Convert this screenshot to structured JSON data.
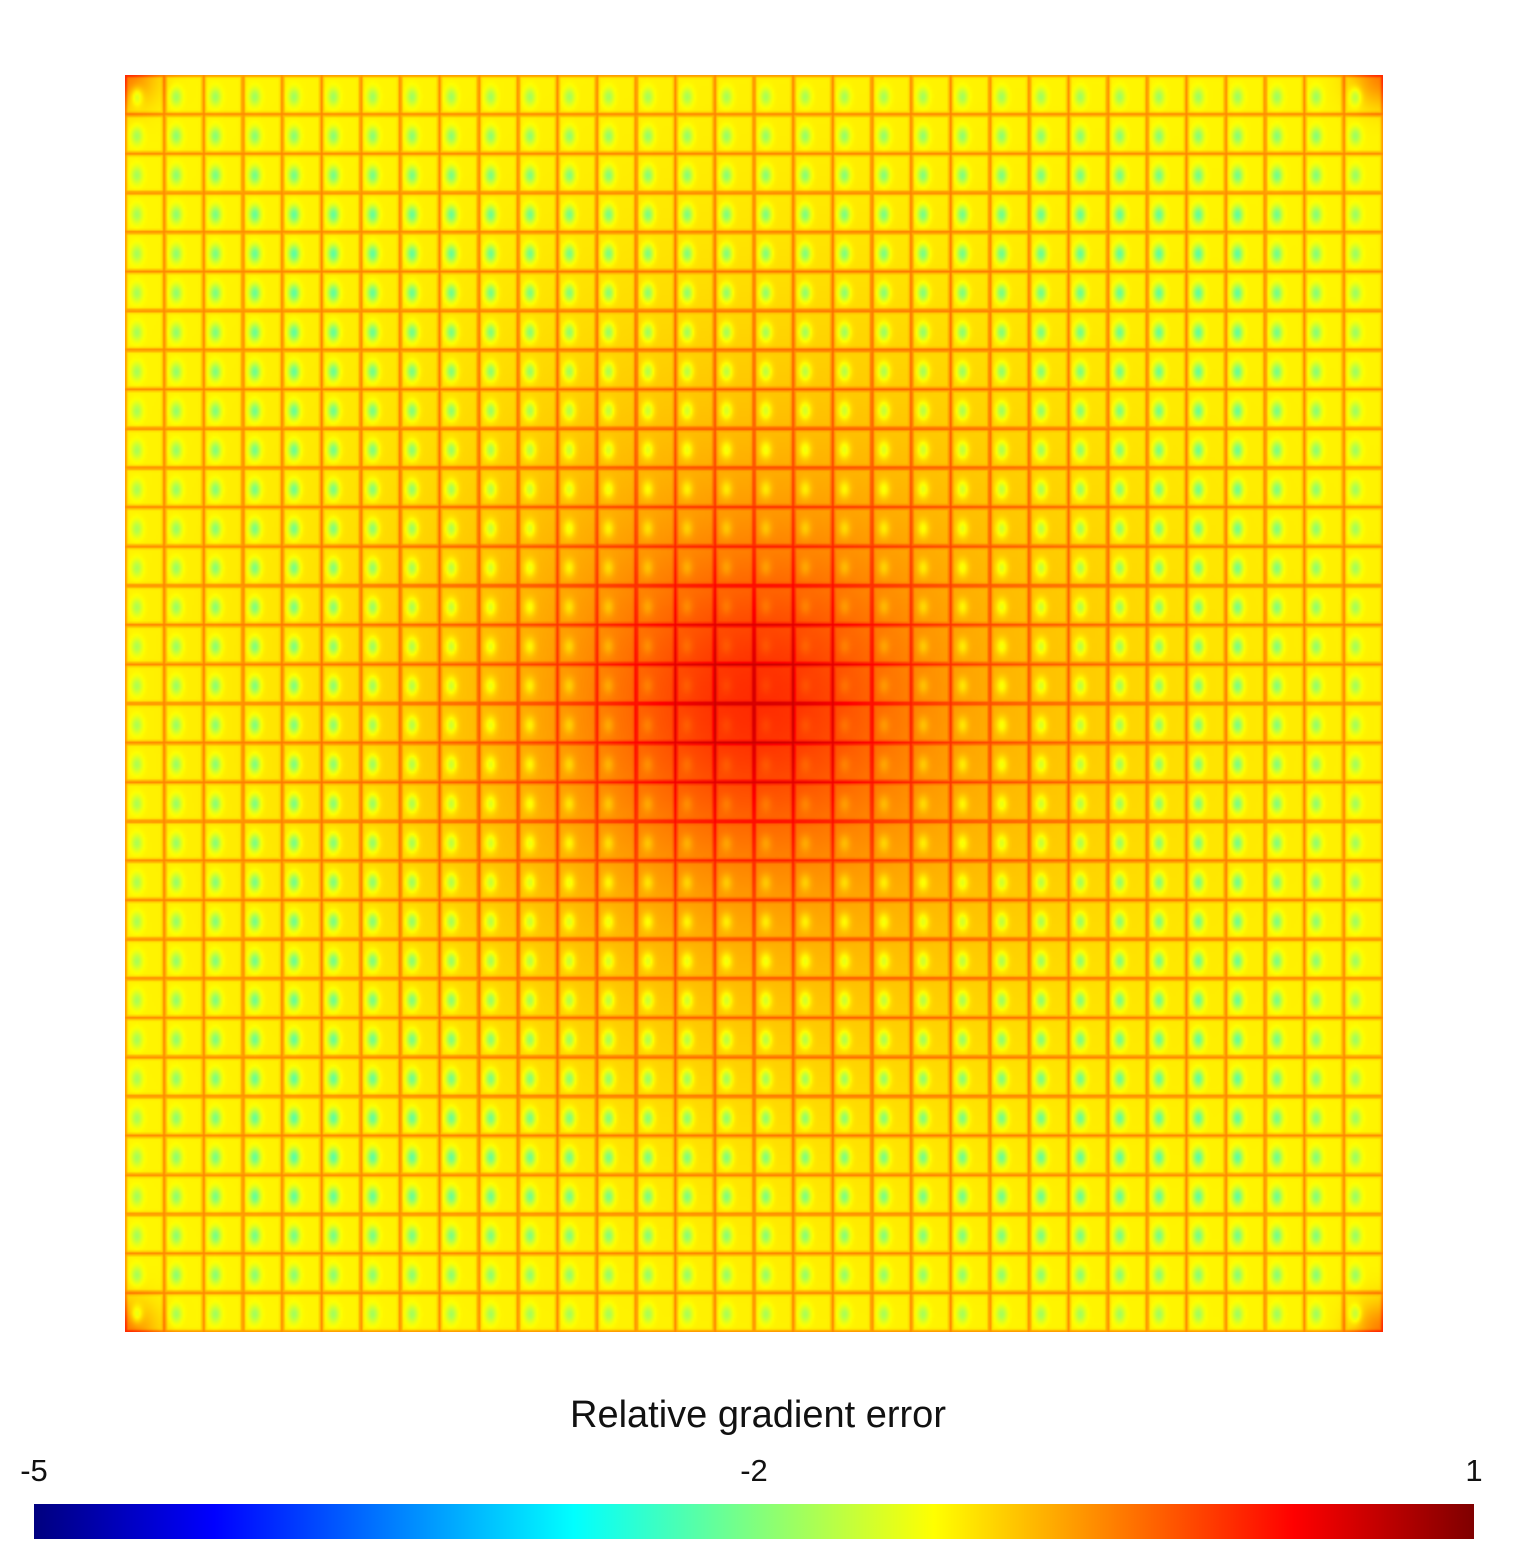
{
  "chart_data": {
    "type": "heatmap",
    "title": "",
    "xlabel": "",
    "ylabel": "",
    "colorbar": {
      "title": "Relative gradient error",
      "range": [
        -5,
        1
      ],
      "ticks": [
        -5,
        -2,
        1
      ],
      "tick_labels": [
        "-5",
        "-2",
        "1"
      ],
      "colormap": "jet",
      "scale": "log10"
    },
    "grid": false,
    "field": {
      "pattern": "periodic cell lattice",
      "cells_per_side": 32,
      "background_value": -1.2,
      "cell_interior_min": -2.3,
      "cell_boundary_max": -0.4,
      "hotspot_center_fraction": [
        0.5,
        0.5
      ],
      "hotspot_peak": 0.2,
      "corner_value": -0.5
    },
    "colors": {
      "stops": [
        "#00007f",
        "#0000ff",
        "#007fff",
        "#00ffff",
        "#7fff7f",
        "#ffff00",
        "#ff7f00",
        "#ff0000",
        "#7f0000"
      ]
    }
  }
}
